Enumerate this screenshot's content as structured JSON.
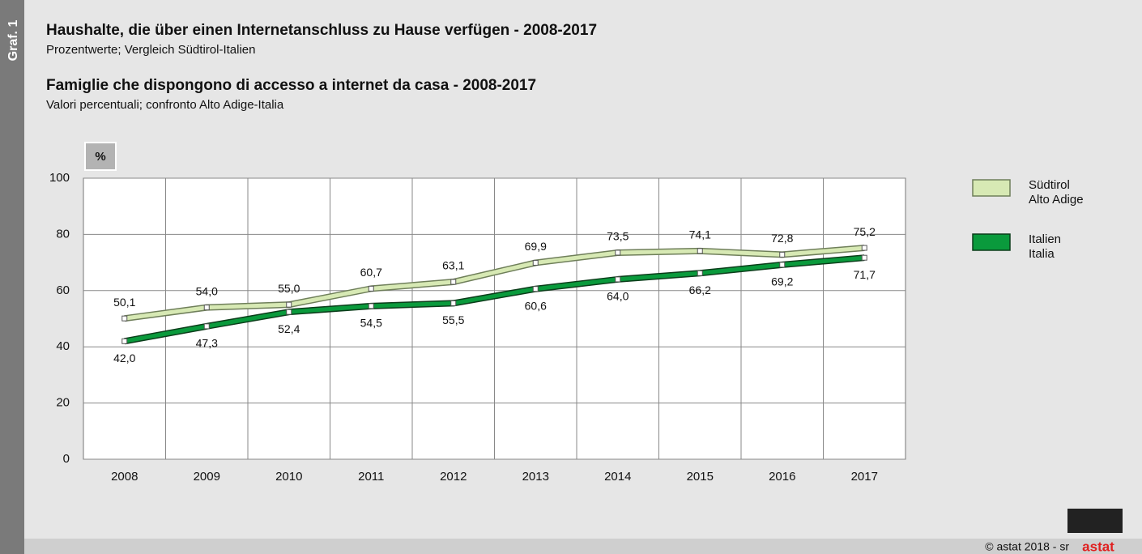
{
  "chart_data": {
    "type": "line",
    "label": "Graf. 1",
    "title": "Haushalte, die über einen Internetanschluss zu Hause verfügen - 2008-2017",
    "subtitle": "Prozentwerte; Vergleich Südtirol-Italien",
    "title_2": "Famiglie che dispongono di accesso a internet da casa - 2008-2017",
    "subtitle_2": "Valori percentuali; confronto Alto Adige-Italia",
    "y_unit": "%",
    "categories": [
      "2008",
      "2009",
      "2010",
      "2011",
      "2012",
      "2013",
      "2014",
      "2015",
      "2016",
      "2017"
    ],
    "series": [
      {
        "name": "Südtirol\nAlto Adige",
        "color": "#d7e9b4",
        "outline": "#6f7f5a",
        "values": [
          50.1,
          54.0,
          55.0,
          60.7,
          63.1,
          69.9,
          73.5,
          74.1,
          72.8,
          75.2
        ],
        "value_labels": [
          "50,1",
          "54,0",
          "55,0",
          "60,7",
          "63,1",
          "69,9",
          "73,5",
          "74,1",
          "72,8",
          "75,2"
        ]
      },
      {
        "name": "Italien\nItalia",
        "color": "#0a9a3c",
        "outline": "#0b3d1a",
        "values": [
          42.0,
          47.3,
          52.4,
          54.5,
          55.5,
          60.6,
          64.0,
          66.2,
          69.2,
          71.7
        ],
        "value_labels": [
          "42,0",
          "47,3",
          "52,4",
          "54,5",
          "55,5",
          "60,6",
          "64,0",
          "66,2",
          "69,2",
          "71,7"
        ]
      }
    ],
    "ylim": [
      0,
      100
    ],
    "yticks": [
      0,
      20,
      40,
      60,
      80,
      100
    ],
    "grid": true,
    "legend_position": "right",
    "footer": "© astat 2018 - sr",
    "logo": "astat"
  }
}
